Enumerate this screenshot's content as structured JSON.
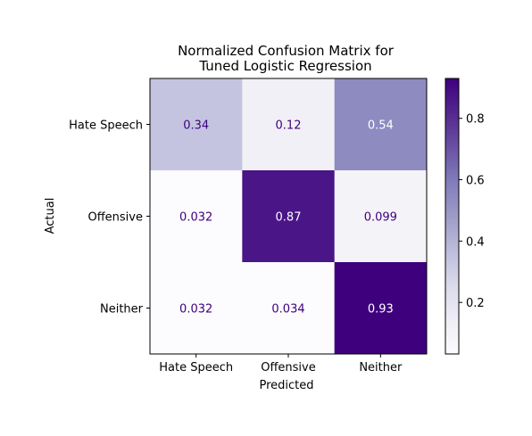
{
  "chart_data": {
    "type": "heatmap",
    "title_lines": [
      "Normalized Confusion Matrix for",
      "Tuned Logistic Regression"
    ],
    "xlabel": "Predicted",
    "ylabel": "Actual",
    "x_categories": [
      "Hate Speech",
      "Offensive",
      "Neither"
    ],
    "y_categories": [
      "Hate Speech",
      "Offensive",
      "Neither"
    ],
    "values": [
      [
        0.34,
        0.12,
        0.54
      ],
      [
        0.032,
        0.87,
        0.099
      ],
      [
        0.032,
        0.034,
        0.93
      ]
    ],
    "value_labels": [
      [
        "0.34",
        "0.12",
        "0.54"
      ],
      [
        "0.032",
        "0.87",
        "0.099"
      ],
      [
        "0.032",
        "0.034",
        "0.93"
      ]
    ],
    "colormap": "Purples",
    "color_range": [
      0.032,
      0.93
    ],
    "colorbar_ticks": [
      0.2,
      0.4,
      0.6,
      0.8
    ],
    "colorbar_tick_labels": [
      "0.2",
      "0.4",
      "0.6",
      "0.8"
    ],
    "colors": {
      "text_dark": "#3f007d",
      "text_light": "#ffffff"
    }
  }
}
